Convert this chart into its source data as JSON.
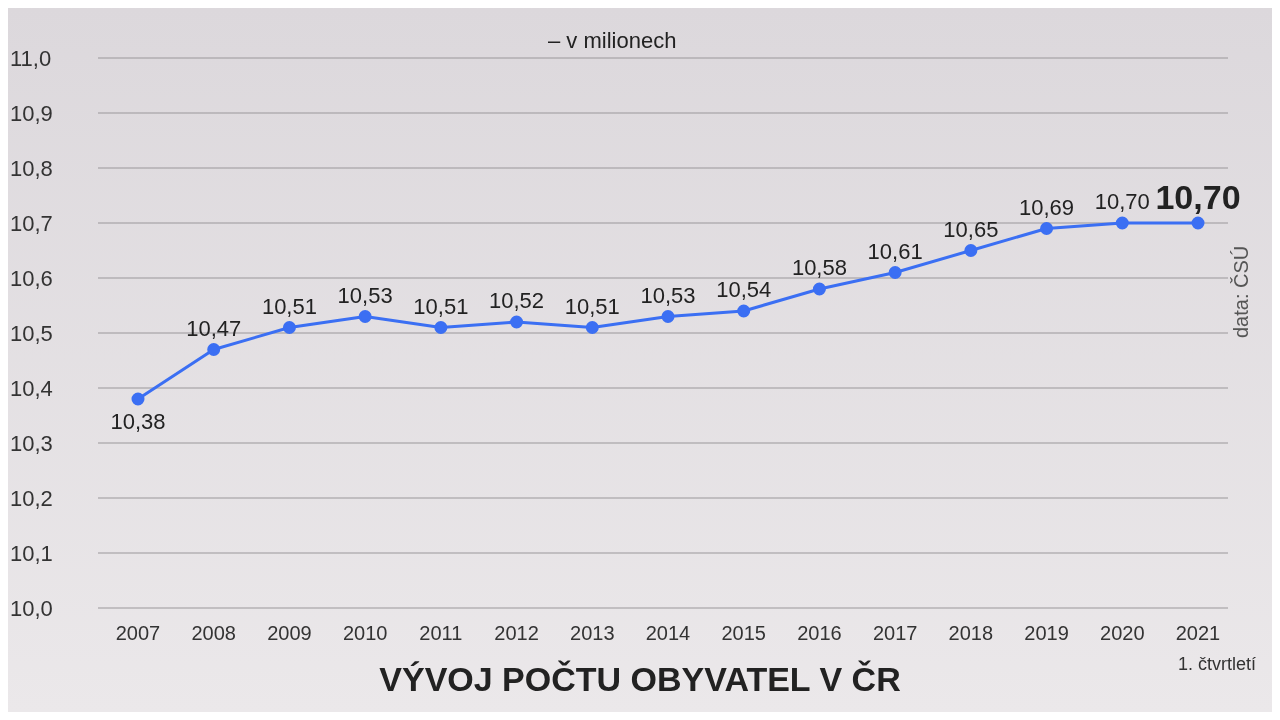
{
  "chart_data": {
    "type": "line",
    "title": "VÝVOJ POČTU OBYVATEL V ČR",
    "subtitle": "– v milionech",
    "annotations": [
      "1. čtvrtletí",
      "data: ČSÚ"
    ],
    "categories": [
      "2007",
      "2008",
      "2009",
      "2010",
      "2011",
      "2012",
      "2013",
      "2014",
      "2015",
      "2016",
      "2017",
      "2018",
      "2019",
      "2020",
      "2021"
    ],
    "values": [
      10.38,
      10.47,
      10.51,
      10.53,
      10.51,
      10.52,
      10.51,
      10.53,
      10.54,
      10.58,
      10.61,
      10.65,
      10.69,
      10.7,
      10.7
    ],
    "value_labels": [
      "10,38",
      "10,47",
      "10,51",
      "10,53",
      "10,51",
      "10,52",
      "10,51",
      "10,53",
      "10,54",
      "10,58",
      "10,61",
      "10,65",
      "10,69",
      "10,70",
      "10,70"
    ],
    "color": "#3b6ff3",
    "marker": "circle",
    "grid": "y",
    "ylim": [
      10.0,
      11.0
    ],
    "yticks": [
      {
        "value": 10.0,
        "label": "10,0"
      },
      {
        "value": 10.1,
        "label": "10,1"
      },
      {
        "value": 10.2,
        "label": "10,2"
      },
      {
        "value": 10.3,
        "label": "10,3"
      },
      {
        "value": 10.4,
        "label": "10,4"
      },
      {
        "value": 10.5,
        "label": "10,5"
      },
      {
        "value": 10.6,
        "label": "10,6"
      },
      {
        "value": 10.7,
        "label": "10,7"
      },
      {
        "value": 10.8,
        "label": "10,8"
      },
      {
        "value": 10.9,
        "label": "10,9"
      },
      {
        "value": 11.0,
        "label": "11,0"
      }
    ]
  }
}
